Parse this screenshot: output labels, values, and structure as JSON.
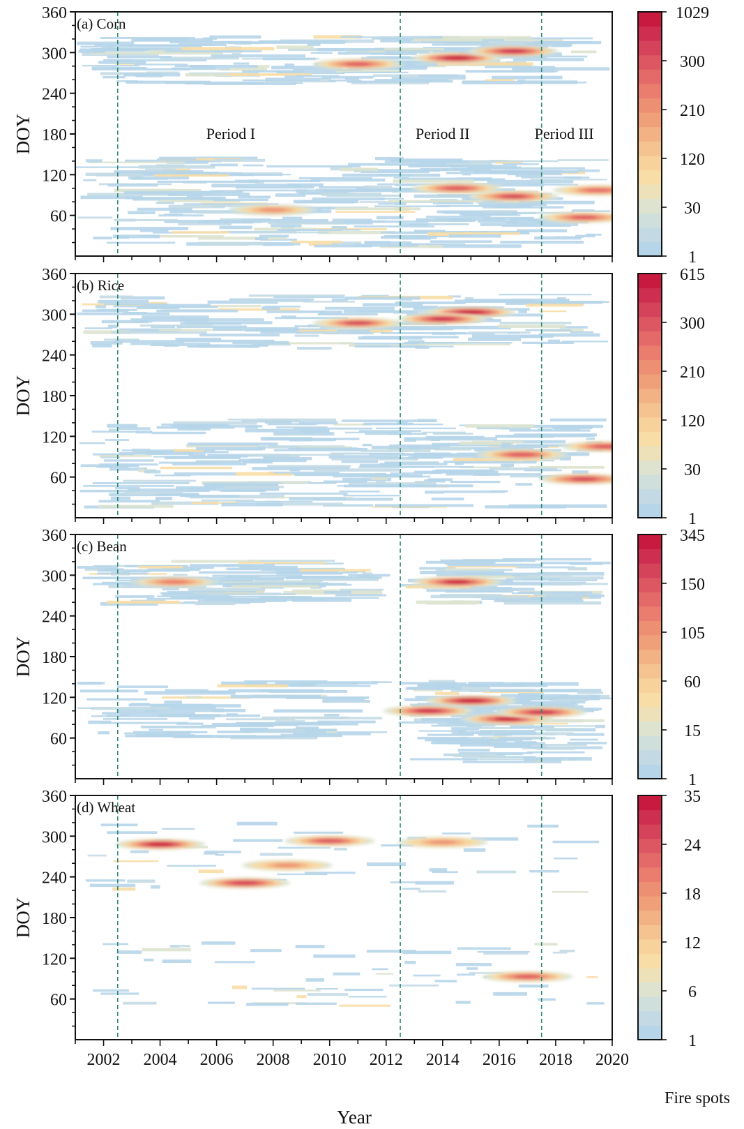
{
  "colors": {
    "scale": [
      "#b6d5e9",
      "#c3dae4",
      "#cfdfdc",
      "#dde3cf",
      "#ece1b9",
      "#f8dda6",
      "#f7d29b",
      "#f5c38f",
      "#f2b283",
      "#f0a079",
      "#ed8f72",
      "#ea7d6d",
      "#e46a6a",
      "#dd5762",
      "#d5435a",
      "#ce2f50",
      "#c8193e"
    ],
    "guide": "#2f8a73",
    "axis": "#111111"
  },
  "figure": {
    "xlabel": "Year",
    "colorbar_label": "Fire spots",
    "periods": [
      "Period I",
      "Period II",
      "Period III"
    ]
  },
  "chart_data": [
    {
      "type": "heatmap",
      "title": "(a) Corn",
      "ylabel": "DOY",
      "xlabel": "Year",
      "xlim": [
        2001,
        2020
      ],
      "ylim": [
        0,
        360
      ],
      "xticks": [
        "2002",
        "2004",
        "2006",
        "2008",
        "2010",
        "2012",
        "2014",
        "2016",
        "2018",
        "2020"
      ],
      "yticks": [
        "60",
        "120",
        "180",
        "240",
        "300",
        "360"
      ],
      "period_boundaries": [
        2002.5,
        2012.5,
        2017.5
      ],
      "colorbar": {
        "min": 1,
        "max": 1029,
        "ticks": [
          "1",
          "30",
          "120",
          "210",
          "300",
          "1029"
        ]
      },
      "hotspots": [
        {
          "year": 2014.5,
          "doy": 292,
          "value": 1029
        },
        {
          "year": 2016.5,
          "doy": 302,
          "value": 700
        },
        {
          "year": 2011.0,
          "doy": 283,
          "value": 250
        },
        {
          "year": 2016.5,
          "doy": 88,
          "value": 450
        },
        {
          "year": 2014.5,
          "doy": 100,
          "value": 300
        },
        {
          "year": 2019.0,
          "doy": 57,
          "value": 250
        },
        {
          "year": 2019.5,
          "doy": 97,
          "value": 200
        },
        {
          "year": 2008.0,
          "doy": 68,
          "value": 80
        }
      ]
    },
    {
      "type": "heatmap",
      "title": "(b) Rice",
      "ylabel": "DOY",
      "xlabel": "Year",
      "xlim": [
        2001,
        2020
      ],
      "ylim": [
        0,
        360
      ],
      "xticks": [
        "2002",
        "2004",
        "2006",
        "2008",
        "2010",
        "2012",
        "2014",
        "2016",
        "2018",
        "2020"
      ],
      "yticks": [
        "60",
        "120",
        "180",
        "240",
        "300",
        "360"
      ],
      "period_boundaries": [
        2002.5,
        2012.5,
        2017.5
      ],
      "colorbar": {
        "min": 1,
        "max": 615,
        "ticks": [
          "1",
          "30",
          "120",
          "210",
          "300",
          "615"
        ]
      },
      "hotspots": [
        {
          "year": 2015.0,
          "doy": 303,
          "value": 615
        },
        {
          "year": 2014.0,
          "doy": 293,
          "value": 450
        },
        {
          "year": 2011.0,
          "doy": 287,
          "value": 250
        },
        {
          "year": 2019.0,
          "doy": 57,
          "value": 300
        },
        {
          "year": 2016.8,
          "doy": 93,
          "value": 220
        },
        {
          "year": 2019.8,
          "doy": 105,
          "value": 200
        }
      ]
    },
    {
      "type": "heatmap",
      "title": "(c) Bean",
      "ylabel": "DOY",
      "xlabel": "Year",
      "xlim": [
        2001,
        2020
      ],
      "ylim": [
        0,
        360
      ],
      "xticks": [
        "2002",
        "2004",
        "2006",
        "2008",
        "2010",
        "2012",
        "2014",
        "2016",
        "2018",
        "2020"
      ],
      "yticks": [
        "60",
        "120",
        "180",
        "240",
        "300",
        "360"
      ],
      "period_boundaries": [
        2002.5,
        2012.5,
        2017.5
      ],
      "colorbar": {
        "min": 1,
        "max": 345,
        "ticks": [
          "1",
          "15",
          "60",
          "105",
          "150",
          "345"
        ]
      },
      "hotspots": [
        {
          "year": 2014.5,
          "doy": 290,
          "value": 300
        },
        {
          "year": 2015.0,
          "doy": 115,
          "value": 345
        },
        {
          "year": 2016.3,
          "doy": 88,
          "value": 300
        },
        {
          "year": 2013.5,
          "doy": 100,
          "value": 250
        },
        {
          "year": 2017.5,
          "doy": 98,
          "value": 200
        },
        {
          "year": 2004.5,
          "doy": 290,
          "value": 60
        }
      ]
    },
    {
      "type": "heatmap",
      "title": "(d) Wheat",
      "ylabel": "DOY",
      "xlabel": "Year",
      "xlim": [
        2001,
        2020
      ],
      "ylim": [
        0,
        360
      ],
      "xticks": [
        "2002",
        "2004",
        "2006",
        "2008",
        "2010",
        "2012",
        "2014",
        "2016",
        "2018",
        "2020"
      ],
      "yticks": [
        "60",
        "120",
        "180",
        "240",
        "300",
        "360"
      ],
      "period_boundaries": [
        2002.5,
        2012.5,
        2017.5
      ],
      "colorbar": {
        "min": 1,
        "max": 35,
        "ticks": [
          "1",
          "6",
          "12",
          "18",
          "24",
          "35"
        ]
      },
      "hotspots": [
        {
          "year": 2004.0,
          "doy": 288,
          "value": 35
        },
        {
          "year": 2007.0,
          "doy": 231,
          "value": 25
        },
        {
          "year": 2010.0,
          "doy": 293,
          "value": 20
        },
        {
          "year": 2017.0,
          "doy": 93,
          "value": 18
        },
        {
          "year": 2008.5,
          "doy": 257,
          "value": 10
        },
        {
          "year": 2014.0,
          "doy": 291,
          "value": 10
        }
      ]
    }
  ]
}
